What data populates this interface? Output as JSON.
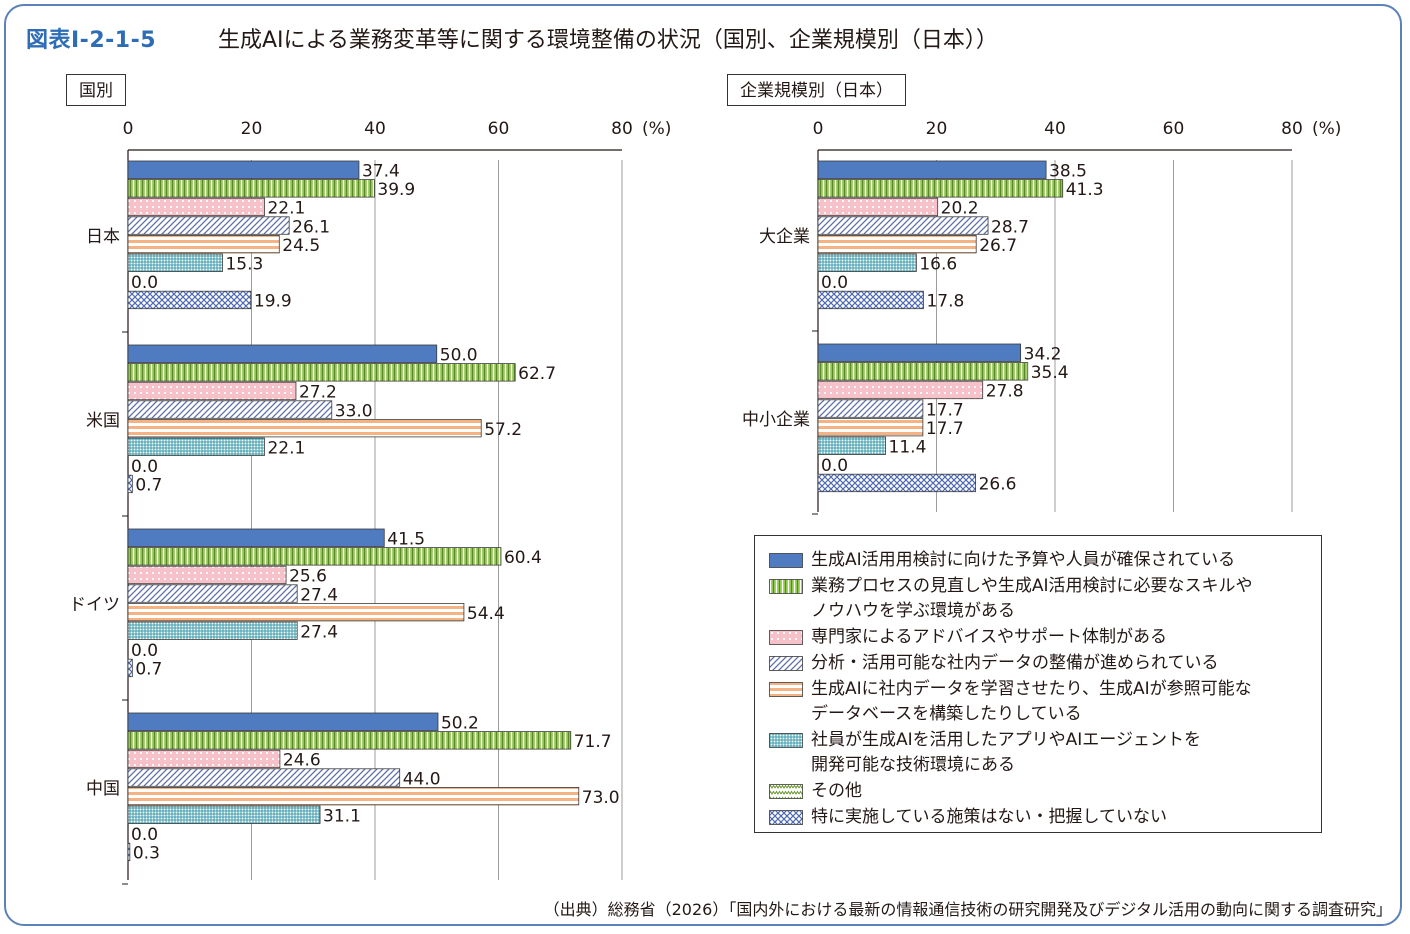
{
  "figure": {
    "number": "図表Ⅰ-2-1-5",
    "title": "生成AIによる業務変革等に関する環境整備の状況（国別、企業規模別（日本））",
    "source": "（出典）総務省（2026）「国内外における最新の情報通信技術の研究開発及びデジタル活用の動向に関する調査研究」"
  },
  "series_styles": [
    {
      "fill": "#4f7cc0",
      "pattern": "solid",
      "stroke": "#2b4f87"
    },
    {
      "fill": "#8fc64e",
      "pattern": "vlines",
      "stroke": "#557f26"
    },
    {
      "fill": "#f6c1c8",
      "pattern": "dots",
      "stroke": "#c76b78"
    },
    {
      "fill": "#b9c6ea",
      "pattern": "diag",
      "stroke": "#5d6fa8"
    },
    {
      "fill": "#f5b383",
      "pattern": "hlines",
      "stroke": "#c86a2b"
    },
    {
      "fill": "#9fd8e3",
      "pattern": "grid",
      "stroke": "#3a9aa9"
    },
    {
      "fill": "#c9e49b",
      "pattern": "zigzag",
      "stroke": "#6c9a2e"
    },
    {
      "fill": "#a9bde6",
      "pattern": "cross",
      "stroke": "#4f6ab0"
    }
  ],
  "chart_data": [
    {
      "type": "bar",
      "orientation": "horizontal",
      "panel_label": "国別",
      "categories": [
        "日本",
        "米国",
        "ドイツ",
        "中国"
      ],
      "series": [
        {
          "name": "生成AI活用用検討に向けた予算や人員が確保されている",
          "values": [
            37.4,
            50.0,
            41.5,
            50.2
          ]
        },
        {
          "name": "業務プロセスの見直しや生成AI活用検討に必要なスキルやノウハウを学ぶ環境がある",
          "values": [
            39.9,
            62.7,
            60.4,
            71.7
          ]
        },
        {
          "name": "専門家によるアドバイスやサポート体制がある",
          "values": [
            22.1,
            27.2,
            25.6,
            24.6
          ]
        },
        {
          "name": "分析・活用可能な社内データの整備が進められている",
          "values": [
            26.1,
            33.0,
            27.4,
            44.0
          ]
        },
        {
          "name": "生成AIに社内データを学習させたり、生成AIが参照可能なデータベースを構築したりしている",
          "values": [
            24.5,
            57.2,
            54.4,
            73.0
          ]
        },
        {
          "name": "社員が生成AIを活用したアプリやAIエージェントを開発可能な技術環境にある",
          "values": [
            15.3,
            22.1,
            27.4,
            31.1
          ]
        },
        {
          "name": "その他",
          "values": [
            0.0,
            0.0,
            0.0,
            0.0
          ]
        },
        {
          "name": "特に実施している施策はない・把握していない",
          "values": [
            19.9,
            0.7,
            0.7,
            0.3
          ]
        }
      ],
      "x_ticks": [
        "0",
        "20",
        "40",
        "60",
        "80"
      ],
      "unit": "(%)",
      "xlim": [
        0,
        80
      ],
      "grid": true
    },
    {
      "type": "bar",
      "orientation": "horizontal",
      "panel_label": "企業規模別（日本）",
      "categories": [
        "大企業",
        "中小企業"
      ],
      "series": [
        {
          "name": "生成AI活用用検討に向けた予算や人員が確保されている",
          "values": [
            38.5,
            34.2
          ]
        },
        {
          "name": "業務プロセスの見直しや生成AI活用検討に必要なスキルやノウハウを学ぶ環境がある",
          "values": [
            41.3,
            35.4
          ]
        },
        {
          "name": "専門家によるアドバイスやサポート体制がある",
          "values": [
            20.2,
            27.8
          ]
        },
        {
          "name": "分析・活用可能な社内データの整備が進められている",
          "values": [
            28.7,
            17.7
          ]
        },
        {
          "name": "生成AIに社内データを学習させたり、生成AIが参照可能なデータベースを構築したりしている",
          "values": [
            26.7,
            17.7
          ]
        },
        {
          "name": "社員が生成AIを活用したアプリやAIエージェントを開発可能な技術環境にある",
          "values": [
            16.6,
            11.4
          ]
        },
        {
          "name": "その他",
          "values": [
            0.0,
            0.0
          ]
        },
        {
          "name": "特に実施している施策はない・把握していない",
          "values": [
            17.8,
            26.6
          ]
        }
      ],
      "x_ticks": [
        "0",
        "20",
        "40",
        "60",
        "80"
      ],
      "unit": "(%)",
      "xlim": [
        0,
        80
      ],
      "grid": true
    }
  ],
  "legend": {
    "items": [
      {
        "lines": [
          "生成AI活用用検討に向けた予算や人員が確保されている"
        ]
      },
      {
        "lines": [
          "業務プロセスの見直しや生成AI活用検討に必要なスキルや",
          "ノウハウを学ぶ環境がある"
        ]
      },
      {
        "lines": [
          "専門家によるアドバイスやサポート体制がある"
        ]
      },
      {
        "lines": [
          "分析・活用可能な社内データの整備が進められている"
        ]
      },
      {
        "lines": [
          "生成AIに社内データを学習させたり、生成AIが参照可能な",
          "データベースを構築したりしている"
        ]
      },
      {
        "lines": [
          "社員が生成AIを活用したアプリやAIエージェントを",
          "開発可能な技術環境にある"
        ]
      },
      {
        "lines": [
          "その他"
        ]
      },
      {
        "lines": [
          "特に実施している施策はない・把握していない"
        ]
      }
    ]
  }
}
